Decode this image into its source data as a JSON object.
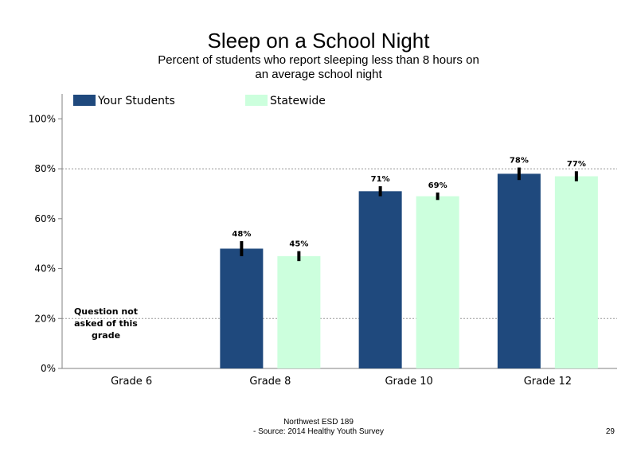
{
  "chart_data": {
    "type": "bar",
    "title": "Sleep on a School Night",
    "subtitle": "Percent of students who report sleeping less than 8 hours on an average school night",
    "categories": [
      "Grade 6",
      "Grade 8",
      "Grade 10",
      "Grade 12"
    ],
    "series": [
      {
        "name": "Your Students",
        "color": "#1F497D",
        "values": [
          null,
          48,
          71,
          78
        ],
        "labels": [
          "",
          "48%",
          "71%",
          "78%"
        ],
        "error": [
          0,
          3,
          2,
          2.5
        ]
      },
      {
        "name": "Statewide",
        "color": "#CCFFDD",
        "values": [
          null,
          45,
          69,
          77
        ],
        "labels": [
          "",
          "45%",
          "69%",
          "77%"
        ],
        "error": [
          0,
          2,
          1.5,
          2
        ]
      }
    ],
    "ylim": [
      0,
      110
    ],
    "yticks": [
      0,
      20,
      40,
      60,
      80,
      100
    ],
    "ytick_labels": [
      "0%",
      "20%",
      "40%",
      "60%",
      "80%",
      "100%"
    ],
    "gridlines": [
      20,
      80
    ],
    "legend_position": "top-left",
    "annotation": "Question not asked of this grade"
  },
  "footer": {
    "line1": "Northwest ESD  189",
    "line2": "- Source: 2014 Healthy  Youth Survey",
    "page_number": "29"
  }
}
